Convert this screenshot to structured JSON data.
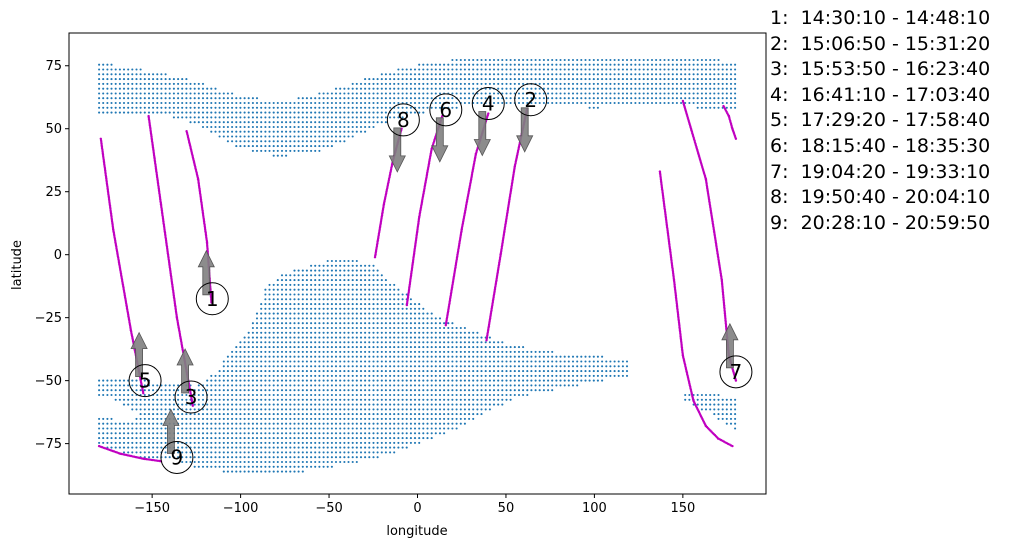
{
  "chart_data": {
    "type": "scatter",
    "title": "",
    "xlabel": "longitude",
    "ylabel": "latitude",
    "xlim": [
      -197,
      197
    ],
    "ylim": [
      -95,
      88
    ],
    "xticks": [
      -150,
      -100,
      -50,
      0,
      50,
      100,
      150
    ],
    "yticks": [
      75,
      50,
      25,
      0,
      -25,
      -50,
      -75
    ],
    "grid": false,
    "colors": {
      "grid_points": "#1f77b4",
      "tracks": "#c000c0",
      "arrows": "#808080"
    },
    "legend": [
      {
        "id": "1",
        "label": "1:  14:30:10 - 14:48:10"
      },
      {
        "id": "2",
        "label": "2:  15:06:50 - 15:31:20"
      },
      {
        "id": "3",
        "label": "3:  15:53:50 - 16:23:40"
      },
      {
        "id": "4",
        "label": "4:  16:41:10 - 17:03:40"
      },
      {
        "id": "5",
        "label": "5:  17:29:20 - 17:58:40"
      },
      {
        "id": "6",
        "label": "6:  18:15:40 - 18:35:30"
      },
      {
        "id": "7",
        "label": "7:  19:04:20 - 19:33:10"
      },
      {
        "id": "8",
        "label": "8:  19:50:40 - 20:04:10"
      },
      {
        "id": "9",
        "label": "9:  20:28:10 - 20:59:50"
      }
    ],
    "coverage_regions": [
      {
        "name": "north",
        "points": [
          [
            -180,
            77
          ],
          [
            -170,
            75
          ],
          [
            -150,
            73
          ],
          [
            -130,
            70
          ],
          [
            -110,
            65
          ],
          [
            -90,
            62
          ],
          [
            -70,
            62
          ],
          [
            -50,
            65
          ],
          [
            -30,
            70
          ],
          [
            -10,
            74
          ],
          [
            10,
            77
          ],
          [
            40,
            78
          ],
          [
            80,
            79
          ],
          [
            120,
            79
          ],
          [
            150,
            78
          ],
          [
            180,
            77
          ],
          [
            180,
            58
          ],
          [
            160,
            58
          ],
          [
            140,
            60
          ],
          [
            120,
            60
          ],
          [
            100,
            58
          ],
          [
            80,
            60
          ],
          [
            60,
            60
          ],
          [
            40,
            60
          ],
          [
            20,
            58
          ],
          [
            0,
            56
          ],
          [
            -20,
            52
          ],
          [
            -40,
            45
          ],
          [
            -60,
            40
          ],
          [
            -80,
            39
          ],
          [
            -100,
            42
          ],
          [
            -120,
            50
          ],
          [
            -140,
            55
          ],
          [
            -160,
            56
          ],
          [
            -180,
            56
          ]
        ]
      },
      {
        "name": "south",
        "points": [
          [
            -180,
            -49
          ],
          [
            -150,
            -50
          ],
          [
            -125,
            -52
          ],
          [
            -115,
            -47
          ],
          [
            -95,
            -30
          ],
          [
            -85,
            -12
          ],
          [
            -75,
            -7
          ],
          [
            -55,
            -3
          ],
          [
            -40,
            -1
          ],
          [
            -25,
            -4
          ],
          [
            -20,
            -8
          ],
          [
            -5,
            -16
          ],
          [
            10,
            -24
          ],
          [
            30,
            -30
          ],
          [
            55,
            -36
          ],
          [
            90,
            -40
          ],
          [
            120,
            -41
          ],
          [
            120,
            -48
          ],
          [
            90,
            -52
          ],
          [
            60,
            -56
          ],
          [
            40,
            -62
          ],
          [
            20,
            -70
          ],
          [
            5,
            -74
          ],
          [
            -10,
            -78
          ],
          [
            -30,
            -82
          ],
          [
            -60,
            -86
          ],
          [
            -100,
            -87
          ],
          [
            -125,
            -85
          ],
          [
            -135,
            -82
          ],
          [
            -155,
            -82
          ],
          [
            -170,
            -78
          ],
          [
            -180,
            -76
          ],
          [
            -180,
            -64
          ],
          [
            -165,
            -66
          ],
          [
            -155,
            -64
          ],
          [
            -170,
            -58
          ],
          [
            -180,
            -56
          ]
        ]
      },
      {
        "name": "south-east",
        "points": [
          [
            150,
            -55
          ],
          [
            165,
            -55
          ],
          [
            180,
            -57
          ],
          [
            180,
            -70
          ],
          [
            165,
            -63
          ],
          [
            150,
            -58
          ]
        ]
      }
    ],
    "tracks": [
      {
        "id": "1",
        "x": [
          -130.5,
          -124,
          -119,
          -116.5
        ],
        "y": [
          49,
          30,
          5,
          -19
        ]
      },
      {
        "id": "2",
        "x": [
          39,
          47,
          55,
          62
        ],
        "y": [
          -34,
          0,
          35,
          58
        ]
      },
      {
        "id": "3",
        "x": [
          -152,
          -145,
          -136,
          -127
        ],
        "y": [
          55,
          20,
          -25,
          -60
        ]
      },
      {
        "id": "4",
        "x": [
          16,
          25,
          33,
          40
        ],
        "y": [
          -28,
          10,
          40,
          56
        ]
      },
      {
        "id": "5",
        "x": [
          -179,
          -172,
          -162,
          -155
        ],
        "y": [
          46,
          10,
          -30,
          -55
        ]
      },
      {
        "id": "6",
        "x": [
          -6,
          1,
          8,
          14
        ],
        "y": [
          -20,
          15,
          42,
          55
        ]
      },
      {
        "id": "7",
        "x": [
          150,
          163,
          172,
          176,
          180
        ],
        "y": [
          61,
          30,
          -10,
          -40,
          -50
        ]
      },
      {
        "id": "7b",
        "x": [
          137,
          145,
          150,
          156,
          163,
          170,
          178
        ],
        "y": [
          33,
          -10,
          -40,
          -58,
          -68,
          -73,
          -76
        ]
      },
      {
        "id": "7c",
        "x": [
          173,
          176,
          178,
          180
        ],
        "y": [
          59,
          55,
          50,
          46
        ]
      },
      {
        "id": "8",
        "x": [
          -24,
          -19,
          -14,
          -9
        ],
        "y": [
          -1,
          20,
          37,
          50
        ]
      },
      {
        "id": "9",
        "x": [
          -180,
          -168,
          -155,
          -145
        ],
        "y": [
          -76,
          -79,
          -81,
          -82
        ]
      }
    ],
    "annotations": [
      {
        "label": "1",
        "x": -116,
        "y": -17.5,
        "arrow": "up"
      },
      {
        "label": "2",
        "x": 64,
        "y": 61.5,
        "arrow": "down"
      },
      {
        "label": "3",
        "x": -128,
        "y": -56.5,
        "arrow": "up"
      },
      {
        "label": "4",
        "x": 40,
        "y": 60,
        "arrow": "down"
      },
      {
        "label": "5",
        "x": -154,
        "y": -50,
        "arrow": "up"
      },
      {
        "label": "6",
        "x": 16,
        "y": 57.5,
        "arrow": "down"
      },
      {
        "label": "7",
        "x": 180,
        "y": -46.5,
        "arrow": "up"
      },
      {
        "label": "8",
        "x": -8,
        "y": 53.5,
        "arrow": "down"
      },
      {
        "label": "9",
        "x": -136,
        "y": -80.5,
        "arrow": "up"
      }
    ]
  }
}
